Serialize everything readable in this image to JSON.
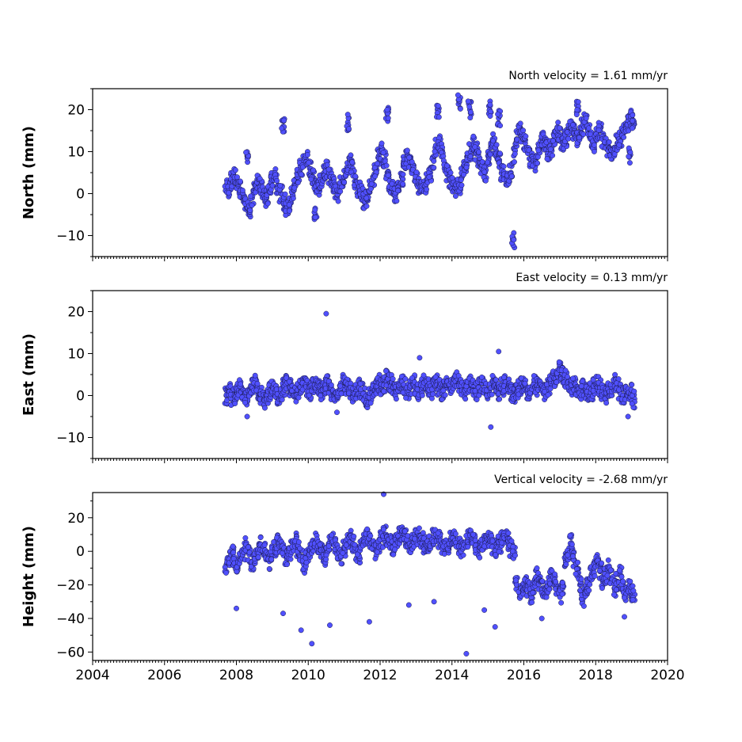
{
  "chart_data": [
    {
      "type": "scatter",
      "title": "North velocity = 1.61 mm/yr",
      "xlabel": "",
      "ylabel": "North (mm)",
      "xlim": [
        2004,
        2020
      ],
      "ylim": [
        -15,
        25
      ],
      "yticks": [
        -10,
        0,
        10,
        20
      ],
      "marker_color": "#5050ff",
      "series": [
        {
          "x": [
            2007.72,
            2007.8,
            2007.88,
            2007.96,
            2008.04,
            2008.12,
            2008.2,
            2008.28,
            2008.36,
            2008.44,
            2008.52,
            2008.6,
            2008.68,
            2008.76,
            2008.84,
            2008.92,
            2009.0,
            2009.08,
            2009.16,
            2009.24,
            2009.32,
            2009.4,
            2009.48,
            2009.56,
            2009.64,
            2009.72,
            2009.8,
            2009.88,
            2009.96,
            2010.04,
            2010.12,
            2010.2,
            2010.28,
            2010.36,
            2010.44,
            2010.52,
            2010.6,
            2010.68,
            2010.76,
            2010.84,
            2010.92,
            2011.0,
            2011.08,
            2011.16,
            2011.24,
            2011.32,
            2011.4,
            2011.48,
            2011.56,
            2011.64,
            2011.72,
            2011.8,
            2011.88,
            2011.96,
            2012.04,
            2012.12,
            2012.2,
            2012.28,
            2012.36,
            2012.44,
            2012.52,
            2012.6,
            2012.68,
            2012.76,
            2012.84,
            2012.92,
            2013.0,
            2013.08,
            2013.16,
            2013.24,
            2013.32,
            2013.4,
            2013.48,
            2013.56,
            2013.64,
            2013.72,
            2013.8,
            2013.88,
            2013.96,
            2014.04,
            2014.12,
            2014.2,
            2014.28,
            2014.36,
            2014.44,
            2014.52,
            2014.6,
            2014.68,
            2014.76,
            2014.84,
            2014.92,
            2015.0,
            2015.08,
            2015.16,
            2015.24,
            2015.32,
            2015.4,
            2015.48,
            2015.56,
            2015.64,
            2015.72,
            2015.8,
            2015.88,
            2015.96,
            2016.04,
            2016.12,
            2016.2,
            2016.28,
            2016.36,
            2016.44,
            2016.52,
            2016.6,
            2016.68,
            2016.76,
            2016.84,
            2016.92,
            2017.0,
            2017.08,
            2017.16,
            2017.24,
            2017.32,
            2017.4,
            2017.48,
            2017.56,
            2017.64,
            2017.72,
            2017.8,
            2017.88,
            2017.96,
            2018.04,
            2018.12,
            2018.2,
            2018.28,
            2018.36,
            2018.44,
            2018.52,
            2018.6,
            2018.68,
            2018.76,
            2018.84,
            2018.92,
            2019.0,
            2019.05,
            2008.3,
            2009.3,
            2010.2,
            2011.1,
            2012.2,
            2013.6,
            2014.2,
            2014.5,
            2015.05,
            2015.3,
            2015.7,
            2017.5,
            2018.95
          ],
          "y": [
            2,
            1,
            3,
            4,
            2,
            1,
            -1,
            -3,
            -4,
            -1,
            1,
            3,
            2,
            0,
            -1,
            2,
            3,
            4,
            2,
            0,
            -2,
            -4,
            -3,
            0,
            2,
            4,
            6,
            7,
            8,
            6,
            4,
            2,
            1,
            3,
            5,
            6,
            4,
            2,
            1,
            0,
            2,
            4,
            6,
            8,
            6,
            3,
            1,
            0,
            -2,
            -1,
            2,
            4,
            6,
            9,
            10,
            8,
            5,
            2,
            1,
            0,
            2,
            4,
            7,
            9,
            8,
            6,
            4,
            2,
            1,
            2,
            3,
            5,
            8,
            11,
            12,
            10,
            7,
            5,
            3,
            2,
            1,
            2,
            4,
            6,
            8,
            10,
            12,
            10,
            8,
            6,
            5,
            9,
            11,
            13,
            10,
            8,
            5,
            4,
            3,
            5,
            9,
            13,
            15,
            14,
            12,
            10,
            8,
            7,
            9,
            11,
            13,
            12,
            10,
            11,
            13,
            15,
            14,
            12,
            13,
            15,
            16,
            15,
            13,
            14,
            16,
            17,
            15,
            13,
            12,
            14,
            15,
            13,
            12,
            11,
            10,
            11,
            12,
            13,
            15,
            16,
            17,
            18,
            17,
            9,
            16,
            -5,
            17,
            19,
            20,
            22,
            20,
            20,
            18,
            -11,
            20,
            9
          ],
          "outliers": [
            [
              2015.72,
              -11
            ],
            [
              2014.45,
              22
            ]
          ]
        }
      ]
    },
    {
      "type": "scatter",
      "title": "East velocity = 0.13 mm/yr",
      "xlabel": "",
      "ylabel": "East (mm)",
      "xlim": [
        2004,
        2020
      ],
      "ylim": [
        -15,
        25
      ],
      "yticks": [
        -10,
        0,
        10,
        20
      ],
      "marker_color": "#5050ff",
      "series": [
        {
          "x": [
            2007.72,
            2007.8,
            2007.88,
            2007.96,
            2008.04,
            2008.12,
            2008.2,
            2008.28,
            2008.36,
            2008.44,
            2008.52,
            2008.6,
            2008.68,
            2008.76,
            2008.84,
            2008.92,
            2009.0,
            2009.08,
            2009.16,
            2009.24,
            2009.32,
            2009.4,
            2009.48,
            2009.56,
            2009.64,
            2009.72,
            2009.8,
            2009.88,
            2009.96,
            2010.04,
            2010.12,
            2010.2,
            2010.28,
            2010.36,
            2010.44,
            2010.52,
            2010.6,
            2010.68,
            2010.76,
            2010.84,
            2010.92,
            2011.0,
            2011.08,
            2011.16,
            2011.24,
            2011.32,
            2011.4,
            2011.48,
            2011.56,
            2011.64,
            2011.72,
            2011.8,
            2011.88,
            2011.96,
            2012.04,
            2012.12,
            2012.2,
            2012.28,
            2012.36,
            2012.44,
            2012.52,
            2012.6,
            2012.68,
            2012.76,
            2012.84,
            2012.92,
            2013.0,
            2013.08,
            2013.16,
            2013.24,
            2013.32,
            2013.4,
            2013.48,
            2013.56,
            2013.64,
            2013.72,
            2013.8,
            2013.88,
            2013.96,
            2014.04,
            2014.12,
            2014.2,
            2014.28,
            2014.36,
            2014.44,
            2014.52,
            2014.6,
            2014.68,
            2014.76,
            2014.84,
            2014.92,
            2015.0,
            2015.08,
            2015.16,
            2015.24,
            2015.32,
            2015.4,
            2015.48,
            2015.56,
            2015.64,
            2015.72,
            2015.8,
            2015.88,
            2015.96,
            2016.04,
            2016.12,
            2016.2,
            2016.28,
            2016.36,
            2016.44,
            2016.52,
            2016.6,
            2016.68,
            2016.76,
            2016.84,
            2016.92,
            2017.0,
            2017.08,
            2017.16,
            2017.24,
            2017.32,
            2017.4,
            2017.48,
            2017.56,
            2017.64,
            2017.72,
            2017.8,
            2017.88,
            2017.96,
            2018.04,
            2018.12,
            2018.2,
            2018.28,
            2018.36,
            2018.44,
            2018.52,
            2018.6,
            2018.68,
            2018.76,
            2018.84,
            2018.92,
            2019.0,
            2019.05
          ],
          "y": [
            0,
            1,
            -1,
            0,
            1,
            2,
            0,
            -1,
            1,
            2,
            3,
            1,
            0,
            -1,
            0,
            1,
            2,
            1,
            0,
            1,
            2,
            3,
            2,
            1,
            0,
            1,
            2,
            3,
            2,
            1,
            2,
            3,
            2,
            1,
            2,
            3,
            2,
            1,
            0,
            1,
            2,
            3,
            2,
            1,
            0,
            1,
            2,
            1,
            0,
            -1,
            0,
            1,
            2,
            3,
            2,
            3,
            4,
            3,
            2,
            1,
            2,
            3,
            2,
            1,
            2,
            3,
            2,
            1,
            2,
            3,
            2,
            1,
            2,
            3,
            2,
            1,
            2,
            3,
            2,
            3,
            4,
            3,
            2,
            1,
            2,
            3,
            2,
            1,
            2,
            3,
            2,
            1,
            2,
            3,
            2,
            1,
            2,
            3,
            2,
            1,
            0,
            1,
            2,
            3,
            2,
            1,
            2,
            3,
            2,
            3,
            2,
            1,
            2,
            3,
            4,
            5,
            6,
            5,
            4,
            3,
            2,
            3,
            2,
            1,
            2,
            1,
            0,
            1,
            2,
            3,
            2,
            1,
            0,
            1,
            2,
            3,
            2,
            1,
            0,
            1,
            0,
            1,
            -1
          ],
          "outliers": [
            [
              2010.5,
              19.5
            ],
            [
              2013.1,
              9
            ],
            [
              2015.3,
              10.5
            ],
            [
              2015.08,
              -7.5
            ],
            [
              2018.9,
              -5
            ],
            [
              2008.3,
              -5
            ],
            [
              2010.8,
              -4
            ]
          ]
        }
      ]
    },
    {
      "type": "scatter",
      "title": "Vertical velocity = -2.68 mm/yr",
      "xlabel": "",
      "ylabel": "Height (mm)",
      "xlim": [
        2004,
        2020
      ],
      "ylim": [
        -65,
        35
      ],
      "yticks": [
        -60,
        -40,
        -20,
        0,
        20
      ],
      "xticks": [
        2004,
        2006,
        2008,
        2010,
        2012,
        2014,
        2016,
        2018,
        2020
      ],
      "marker_color": "#5050ff",
      "series": [
        {
          "x": [
            2007.72,
            2007.8,
            2007.88,
            2007.96,
            2008.04,
            2008.12,
            2008.2,
            2008.28,
            2008.36,
            2008.44,
            2008.52,
            2008.6,
            2008.68,
            2008.76,
            2008.84,
            2008.92,
            2009.0,
            2009.08,
            2009.16,
            2009.24,
            2009.32,
            2009.4,
            2009.48,
            2009.56,
            2009.64,
            2009.72,
            2009.8,
            2009.88,
            2009.96,
            2010.04,
            2010.12,
            2010.2,
            2010.28,
            2010.36,
            2010.44,
            2010.52,
            2010.6,
            2010.68,
            2010.76,
            2010.84,
            2010.92,
            2011.0,
            2011.08,
            2011.16,
            2011.24,
            2011.32,
            2011.4,
            2011.48,
            2011.56,
            2011.64,
            2011.72,
            2011.8,
            2011.88,
            2011.96,
            2012.04,
            2012.12,
            2012.2,
            2012.28,
            2012.36,
            2012.44,
            2012.52,
            2012.6,
            2012.68,
            2012.76,
            2012.84,
            2012.92,
            2013.0,
            2013.08,
            2013.16,
            2013.24,
            2013.32,
            2013.4,
            2013.48,
            2013.56,
            2013.64,
            2013.72,
            2013.8,
            2013.88,
            2013.96,
            2014.04,
            2014.12,
            2014.2,
            2014.28,
            2014.36,
            2014.44,
            2014.52,
            2014.6,
            2014.68,
            2014.76,
            2014.84,
            2014.92,
            2015.0,
            2015.08,
            2015.16,
            2015.24,
            2015.32,
            2015.4,
            2015.48,
            2015.56,
            2015.64,
            2015.72,
            2015.8,
            2015.88,
            2015.96,
            2016.04,
            2016.12,
            2016.2,
            2016.28,
            2016.36,
            2016.44,
            2016.52,
            2016.6,
            2016.68,
            2016.76,
            2016.84,
            2016.92,
            2017.0,
            2017.08,
            2017.16,
            2017.24,
            2017.32,
            2017.4,
            2017.48,
            2017.56,
            2017.64,
            2017.72,
            2017.8,
            2017.88,
            2017.96,
            2018.04,
            2018.12,
            2018.2,
            2018.28,
            2018.36,
            2018.44,
            2018.52,
            2018.6,
            2018.68,
            2018.76,
            2018.84,
            2018.92,
            2019.0,
            2019.05
          ],
          "y": [
            -8,
            -5,
            -2,
            -6,
            -10,
            -4,
            0,
            3,
            -2,
            -6,
            -3,
            1,
            4,
            2,
            -3,
            -6,
            -2,
            2,
            5,
            3,
            -1,
            -4,
            0,
            3,
            6,
            2,
            -3,
            -8,
            -4,
            0,
            3,
            6,
            4,
            0,
            -4,
            0,
            4,
            6,
            3,
            0,
            -3,
            2,
            5,
            8,
            4,
            0,
            -2,
            3,
            6,
            9,
            6,
            3,
            0,
            4,
            7,
            10,
            8,
            5,
            3,
            6,
            9,
            11,
            8,
            5,
            3,
            6,
            9,
            10,
            7,
            4,
            2,
            5,
            8,
            10,
            7,
            4,
            2,
            4,
            7,
            9,
            6,
            3,
            1,
            4,
            7,
            9,
            6,
            3,
            1,
            4,
            7,
            9,
            6,
            3,
            1,
            4,
            8,
            10,
            6,
            2,
            -2,
            -20,
            -25,
            -22,
            -18,
            -22,
            -26,
            -20,
            -15,
            -18,
            -22,
            -25,
            -20,
            -15,
            -18,
            -22,
            -26,
            -22,
            -5,
            0,
            5,
            -5,
            -10,
            -20,
            -28,
            -24,
            -20,
            -14,
            -10,
            -6,
            -12,
            -18,
            -14,
            -10,
            -16,
            -22,
            -18,
            -14,
            -20,
            -26,
            -22,
            -25,
            -28
          ],
          "outliers": [
            [
              2014.4,
              -61
            ],
            [
              2012.1,
              34
            ],
            [
              2010.1,
              -55
            ],
            [
              2009.8,
              -47
            ],
            [
              2011.7,
              -42
            ],
            [
              2013.5,
              -30
            ],
            [
              2015.2,
              -45
            ],
            [
              2016.5,
              -40
            ],
            [
              2018.8,
              -39
            ],
            [
              2009.3,
              -37
            ],
            [
              2012.8,
              -32
            ],
            [
              2014.9,
              -35
            ],
            [
              2008.0,
              -34
            ],
            [
              2010.6,
              -44
            ]
          ]
        }
      ]
    }
  ]
}
